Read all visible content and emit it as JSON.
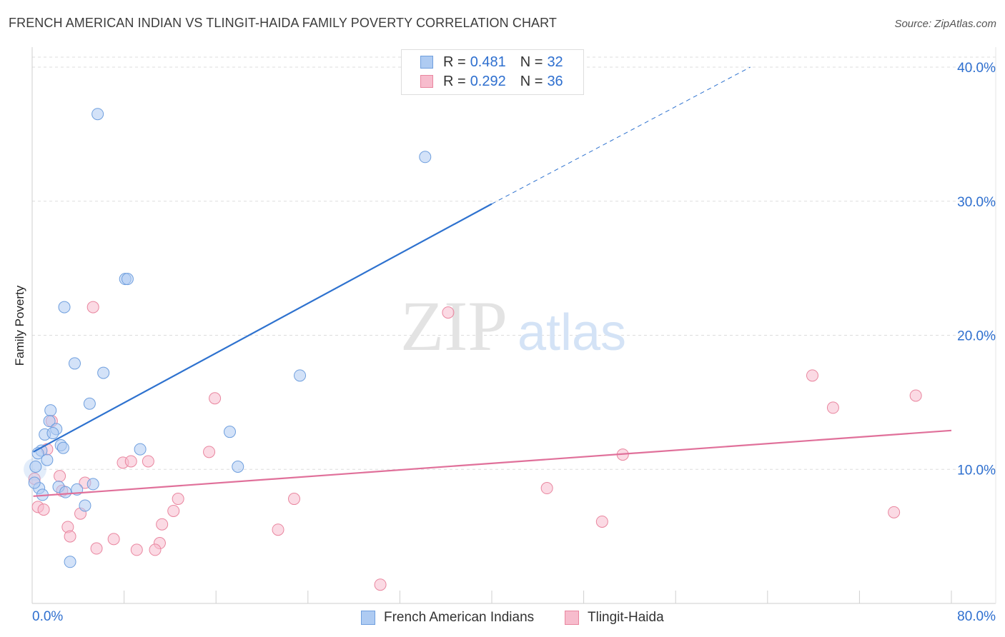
{
  "title": "FRENCH AMERICAN INDIAN VS TLINGIT-HAIDA FAMILY POVERTY CORRELATION CHART",
  "source": "Source: ZipAtlas.com",
  "watermark": {
    "zip": "ZIP",
    "atlas": "atlas"
  },
  "legend_top": [
    {
      "r_label": "R =",
      "r_value": "0.481",
      "n_label": "N =",
      "n_value": "32"
    },
    {
      "r_label": "R =",
      "r_value": "0.292",
      "n_label": "N =",
      "n_value": "36"
    }
  ],
  "colors": {
    "blue_fill": "#aecbf2",
    "blue_stroke": "#6f9fde",
    "blue_line": "#2e72cf",
    "pink_fill": "#f7bccd",
    "pink_stroke": "#e9869f",
    "pink_line": "#e0709a",
    "grid": "#dddddd",
    "tick_text": "#2e6fcf"
  },
  "chart_data": {
    "type": "scatter",
    "xlabel": "",
    "ylabel": "Family Poverty",
    "xlim": [
      0,
      80
    ],
    "ylim": [
      0,
      40
    ],
    "x_tick_labels": [
      "0.0%",
      "80.0%"
    ],
    "y_ticks": [
      10,
      20,
      30,
      40
    ],
    "y_tick_labels": [
      "10.0%",
      "20.0%",
      "30.0%",
      "40.0%"
    ],
    "grid": true,
    "legend_position": "top-center",
    "series": [
      {
        "name": "French American Indians",
        "color": "#aecbf2",
        "points": [
          [
            5.7,
            36.5
          ],
          [
            34.2,
            33.3
          ],
          [
            8.1,
            24.2
          ],
          [
            8.3,
            24.2
          ],
          [
            2.8,
            22.1
          ],
          [
            3.7,
            17.9
          ],
          [
            6.2,
            17.2
          ],
          [
            23.3,
            17.0
          ],
          [
            5.0,
            14.9
          ],
          [
            1.6,
            14.4
          ],
          [
            1.5,
            13.6
          ],
          [
            2.1,
            13.0
          ],
          [
            17.2,
            12.8
          ],
          [
            1.1,
            12.6
          ],
          [
            1.8,
            12.7
          ],
          [
            2.5,
            11.8
          ],
          [
            2.7,
            11.6
          ],
          [
            9.4,
            11.5
          ],
          [
            0.8,
            11.4
          ],
          [
            0.5,
            11.2
          ],
          [
            1.3,
            10.7
          ],
          [
            0.3,
            10.2
          ],
          [
            17.9,
            10.2
          ],
          [
            5.3,
            8.9
          ],
          [
            0.6,
            8.6
          ],
          [
            2.3,
            8.7
          ],
          [
            3.9,
            8.5
          ],
          [
            2.9,
            8.3
          ],
          [
            0.9,
            8.1
          ],
          [
            4.6,
            7.3
          ],
          [
            3.3,
            3.1
          ],
          [
            0.2,
            9.0
          ]
        ],
        "fit": {
          "x_from": 0.1,
          "x_to": 40.0,
          "y_from": 11.3,
          "y_to": 29.8,
          "dash_to_x": 62.5,
          "dash_to_y": 40.0
        }
      },
      {
        "name": "Tlingit-Haida",
        "color": "#f7bccd",
        "points": [
          [
            5.3,
            22.1
          ],
          [
            36.2,
            21.7
          ],
          [
            67.9,
            17.0
          ],
          [
            76.9,
            15.5
          ],
          [
            15.9,
            15.3
          ],
          [
            69.7,
            14.6
          ],
          [
            1.7,
            13.6
          ],
          [
            1.3,
            11.5
          ],
          [
            15.4,
            11.3
          ],
          [
            51.4,
            11.1
          ],
          [
            10.1,
            10.6
          ],
          [
            7.9,
            10.5
          ],
          [
            8.6,
            10.6
          ],
          [
            2.4,
            9.5
          ],
          [
            0.2,
            9.3
          ],
          [
            4.6,
            9.0
          ],
          [
            44.8,
            8.6
          ],
          [
            12.7,
            7.8
          ],
          [
            22.8,
            7.8
          ],
          [
            0.5,
            7.2
          ],
          [
            1.0,
            7.0
          ],
          [
            12.3,
            6.9
          ],
          [
            75.0,
            6.8
          ],
          [
            4.2,
            6.7
          ],
          [
            49.6,
            6.1
          ],
          [
            11.3,
            5.9
          ],
          [
            3.1,
            5.7
          ],
          [
            21.4,
            5.5
          ],
          [
            3.3,
            5.0
          ],
          [
            7.1,
            4.8
          ],
          [
            11.1,
            4.5
          ],
          [
            5.6,
            4.1
          ],
          [
            9.1,
            4.0
          ],
          [
            10.7,
            4.0
          ],
          [
            30.3,
            1.4
          ],
          [
            2.6,
            8.4
          ]
        ],
        "fit": {
          "x_from": 0.1,
          "x_to": 80.0,
          "y_from": 8.0,
          "y_to": 12.9
        }
      }
    ]
  }
}
